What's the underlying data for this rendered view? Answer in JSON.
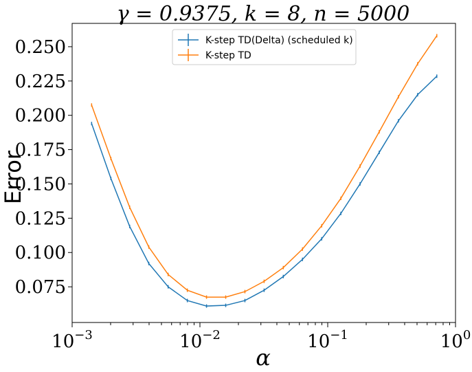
{
  "chart_data": {
    "type": "line",
    "title": "γ = 0.9375, k = 8, n = 5000",
    "xlabel": "α",
    "ylabel": "Error",
    "xscale": "log",
    "xlim": [
      0.001,
      1
    ],
    "ylim": [
      0.049,
      0.267
    ],
    "x_ticks": [
      {
        "value": 0.001,
        "base": "10",
        "exp": "−3"
      },
      {
        "value": 0.01,
        "base": "10",
        "exp": "−2"
      },
      {
        "value": 0.1,
        "base": "10",
        "exp": "−1"
      },
      {
        "value": 1,
        "base": "10",
        "exp": "0"
      }
    ],
    "y_ticks": [
      {
        "value": 0.075,
        "label": "0.075"
      },
      {
        "value": 0.1,
        "label": "0.100"
      },
      {
        "value": 0.125,
        "label": "0.125"
      },
      {
        "value": 0.15,
        "label": "0.150"
      },
      {
        "value": 0.175,
        "label": "0.175"
      },
      {
        "value": 0.2,
        "label": "0.200"
      },
      {
        "value": 0.225,
        "label": "0.225"
      },
      {
        "value": 0.25,
        "label": "0.250"
      }
    ],
    "x": [
      0.00142,
      0.00201,
      0.00282,
      0.00398,
      0.00564,
      0.00797,
      0.01126,
      0.01591,
      0.02249,
      0.03178,
      0.04491,
      0.06346,
      0.08968,
      0.12672,
      0.17906,
      0.25302,
      0.35754,
      0.50522,
      0.71392
    ],
    "series": [
      {
        "name": "K-step TD(Delta) (scheduled k)",
        "color": "#1f77b4",
        "values": [
          0.194,
          0.154,
          0.119,
          0.092,
          0.075,
          0.065,
          0.061,
          0.0615,
          0.065,
          0.0725,
          0.0825,
          0.095,
          0.11,
          0.1285,
          0.15,
          0.173,
          0.196,
          0.215,
          0.2285
        ]
      },
      {
        "name": "K-step TD",
        "color": "#ff7f0e",
        "values": [
          0.2075,
          0.1685,
          0.133,
          0.104,
          0.084,
          0.0725,
          0.0675,
          0.0675,
          0.0715,
          0.079,
          0.089,
          0.1025,
          0.1195,
          0.1395,
          0.163,
          0.188,
          0.2135,
          0.2375,
          0.258
        ]
      }
    ],
    "legend_position": "upper-center",
    "grid": false
  }
}
